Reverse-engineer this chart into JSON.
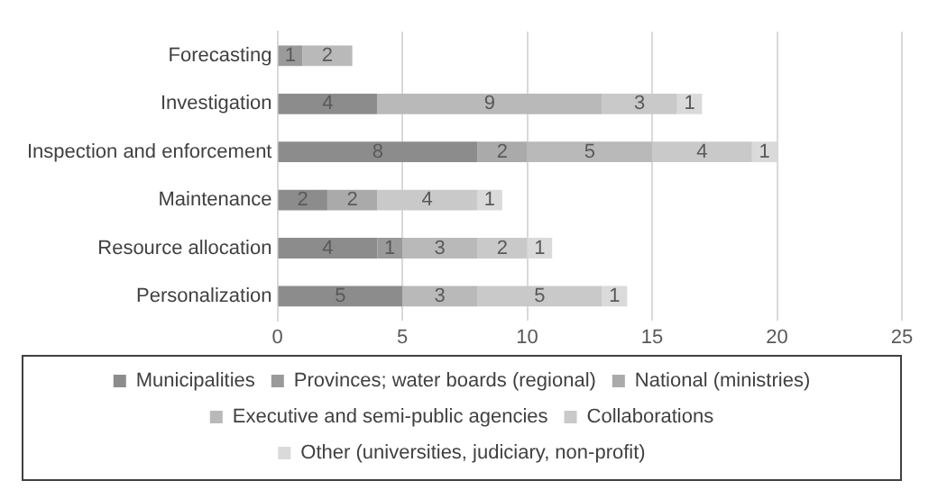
{
  "chart_data": {
    "type": "bar",
    "orientation": "horizontal",
    "stacked": true,
    "data_labels": true,
    "grid": "x",
    "legend": "bottom",
    "categories": [
      "Forecasting",
      "Investigation",
      "Inspection and enforcement",
      "Maintenance",
      "Resource allocation",
      "Personalization"
    ],
    "xlim": [
      0,
      25
    ],
    "xticks": [
      0,
      5,
      10,
      15,
      20,
      25
    ],
    "series": [
      {
        "name": "Municipalities",
        "color": "#8c8c8c",
        "values": [
          null,
          4,
          8,
          2,
          4,
          5
        ]
      },
      {
        "name": "Provinces; water boards (regional)",
        "color": "#9a9a9a",
        "values": [
          1,
          null,
          null,
          null,
          1,
          null
        ]
      },
      {
        "name": "National (ministries)",
        "color": "#aaaaaa",
        "values": [
          null,
          null,
          2,
          2,
          null,
          null
        ]
      },
      {
        "name": "Executive and semi-public agencies",
        "color": "#b9b9b9",
        "values": [
          2,
          9,
          5,
          null,
          3,
          3
        ]
      },
      {
        "name": "Collaborations",
        "color": "#c9c9c9",
        "values": [
          null,
          3,
          4,
          4,
          2,
          5
        ]
      },
      {
        "name": "Other (universities, judiciary, non-profit)",
        "color": "#dadada",
        "values": [
          null,
          1,
          1,
          1,
          1,
          1
        ]
      }
    ]
  }
}
